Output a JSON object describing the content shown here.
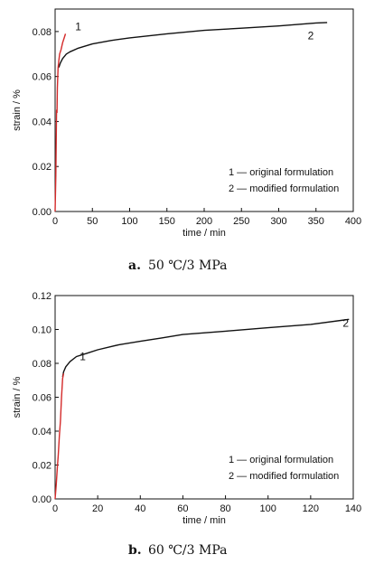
{
  "chart_data": [
    {
      "type": "line",
      "caption": {
        "letter": "a.",
        "text": "50 ℃/3 MPa"
      },
      "xlabel": "time / min",
      "ylabel": "strain / %",
      "xlim": [
        0,
        400
      ],
      "ylim": [
        0,
        0.09
      ],
      "xticks": [
        0,
        50,
        100,
        150,
        200,
        250,
        300,
        350,
        400
      ],
      "yticks": [
        0.0,
        0.02,
        0.04,
        0.06,
        0.08
      ],
      "ytick_decimals": 2,
      "legend_placement": "bottom-right",
      "legend": [
        "1 — original formulation",
        "2 — modified formulation"
      ],
      "series": [
        {
          "label": "1",
          "color": "#d42a2a",
          "x": [
            0,
            1,
            2,
            2.5,
            3,
            4,
            5,
            6,
            8,
            10,
            12,
            14
          ],
          "y": [
            0,
            0.016,
            0.045,
            0.044,
            0.055,
            0.064,
            0.067,
            0.07,
            0.072,
            0.075,
            0.077,
            0.079
          ]
        },
        {
          "label": "2",
          "color": "#111111",
          "x": [
            5,
            7,
            10,
            15,
            20,
            30,
            50,
            75,
            100,
            150,
            200,
            250,
            300,
            350,
            365
          ],
          "y": [
            0.064,
            0.066,
            0.068,
            0.07,
            0.071,
            0.0725,
            0.0745,
            0.076,
            0.0772,
            0.079,
            0.0805,
            0.0815,
            0.0825,
            0.0838,
            0.084
          ]
        }
      ],
      "annotations": [
        {
          "text": "1",
          "x": 31,
          "y": 0.0805
        },
        {
          "text": "2",
          "x": 343,
          "y": 0.0765
        }
      ]
    },
    {
      "type": "line",
      "caption": {
        "letter": "b.",
        "text": "60 ℃/3 MPa"
      },
      "xlabel": "time / min",
      "ylabel": "strain / %",
      "xlim": [
        0,
        140
      ],
      "ylim": [
        0,
        0.12
      ],
      "xticks": [
        0,
        20,
        40,
        60,
        80,
        100,
        120,
        140
      ],
      "yticks": [
        0.0,
        0.02,
        0.04,
        0.06,
        0.08,
        0.1,
        0.12
      ],
      "ytick_decimals": 2,
      "legend_placement": "bottom-right",
      "legend": [
        "1 — original formulation",
        "2 — modified formulation"
      ],
      "series": [
        {
          "label": "1",
          "color": "#d42a2a",
          "x": [
            0,
            0.5,
            1,
            1.5,
            2,
            2.5,
            3,
            3.5,
            4
          ],
          "y": [
            0,
            0.008,
            0.018,
            0.026,
            0.037,
            0.046,
            0.06,
            0.071,
            0.074
          ]
        },
        {
          "label": "2",
          "color": "#111111",
          "x": [
            3.5,
            4,
            5,
            7,
            10,
            15,
            20,
            30,
            40,
            50,
            60,
            80,
            100,
            120,
            138
          ],
          "y": [
            0.072,
            0.075,
            0.078,
            0.081,
            0.084,
            0.086,
            0.088,
            0.091,
            0.093,
            0.095,
            0.097,
            0.099,
            0.101,
            0.103,
            0.106
          ]
        }
      ],
      "annotations": [
        {
          "text": "1",
          "x": 13,
          "y": 0.082
        },
        {
          "text": "2",
          "x": 136.5,
          "y": 0.1015
        }
      ]
    }
  ]
}
